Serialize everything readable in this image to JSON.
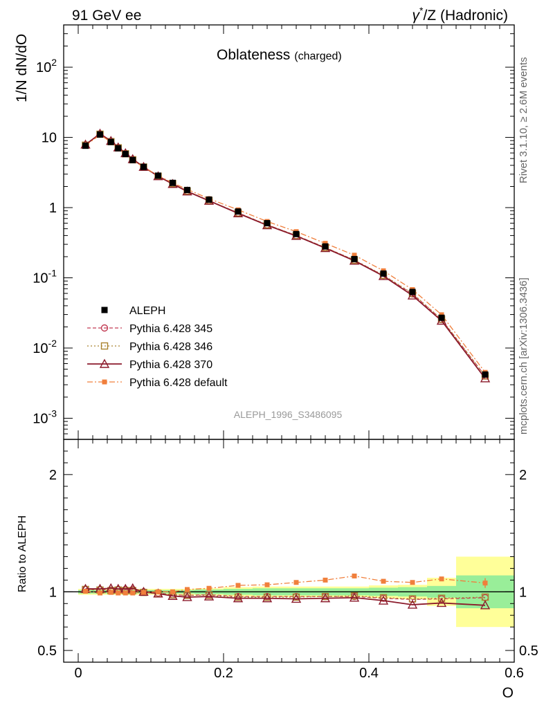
{
  "header": {
    "left_label": "91 GeV ee",
    "right_label_gamma": "γ",
    "right_label_star": "*",
    "right_label_rest": "/Z (Hadronic)"
  },
  "side": {
    "rivet_label": "Rivet 3.1.10, ≥ 2.6M events",
    "mcplots_label": "mcplots.cern.ch [arXiv:1306.3436]"
  },
  "chart_data": [
    {
      "type": "line",
      "scale": "log",
      "title": "Oblateness",
      "title_sub": "(charged)",
      "ylabel": "1/N dN/dO",
      "watermark": "ALEPH_1996_S3486095",
      "xlim": [
        -0.02,
        0.6
      ],
      "ylim": [
        0.0005,
        400
      ],
      "x_ticks": [
        0,
        0.2,
        0.4,
        0.6
      ],
      "y_ticks": [
        {
          "value": 0.001,
          "base": "10",
          "exp": "-3"
        },
        {
          "value": 0.01,
          "base": "10",
          "exp": "-2"
        },
        {
          "value": 0.1,
          "base": "10",
          "exp": "-1"
        },
        {
          "value": 1,
          "base": "1",
          "exp": ""
        },
        {
          "value": 10,
          "base": "10",
          "exp": ""
        },
        {
          "value": 100,
          "base": "10",
          "exp": "2"
        }
      ],
      "x": [
        0.01,
        0.03,
        0.045,
        0.055,
        0.065,
        0.075,
        0.09,
        0.11,
        0.13,
        0.15,
        0.18,
        0.22,
        0.26,
        0.3,
        0.34,
        0.38,
        0.42,
        0.46,
        0.5,
        0.56
      ],
      "series": [
        {
          "name": "ALEPH",
          "style": "data",
          "color": "#000000",
          "values": [
            7.6,
            11.0,
            8.6,
            7.0,
            5.8,
            4.75,
            3.8,
            2.85,
            2.25,
            1.78,
            1.3,
            0.88,
            0.6,
            0.42,
            0.28,
            0.185,
            0.115,
            0.063,
            0.027,
            0.0042
          ]
        },
        {
          "name": "Pythia 6.428 345",
          "style": "circle",
          "color": "#c23b53",
          "values": [
            7.8,
            11.2,
            8.8,
            7.15,
            5.9,
            4.85,
            3.8,
            2.8,
            2.2,
            1.72,
            1.26,
            0.84,
            0.57,
            0.4,
            0.27,
            0.178,
            0.108,
            0.059,
            0.0255,
            0.004
          ]
        },
        {
          "name": "Pythia 6.428 346",
          "style": "square",
          "color": "#a9822e",
          "values": [
            7.75,
            11.1,
            8.7,
            7.1,
            5.85,
            4.8,
            3.78,
            2.8,
            2.2,
            1.72,
            1.26,
            0.84,
            0.57,
            0.4,
            0.27,
            0.179,
            0.109,
            0.06,
            0.0257,
            0.004
          ]
        },
        {
          "name": "Pythia 6.428 370",
          "style": "triangle",
          "color": "#8b1a2b",
          "values": [
            7.9,
            11.3,
            8.9,
            7.2,
            5.95,
            4.9,
            3.8,
            2.8,
            2.17,
            1.7,
            1.25,
            0.83,
            0.56,
            0.395,
            0.265,
            0.175,
            0.106,
            0.056,
            0.0245,
            0.0037
          ]
        },
        {
          "name": "Pythia 6.428 default",
          "style": "filled-square",
          "color": "#f07f3c",
          "values": [
            7.65,
            10.9,
            8.6,
            6.95,
            5.75,
            4.7,
            3.78,
            2.85,
            2.25,
            1.82,
            1.34,
            0.93,
            0.635,
            0.455,
            0.31,
            0.21,
            0.126,
            0.068,
            0.0298,
            0.0045
          ]
        }
      ]
    },
    {
      "type": "line",
      "title": "",
      "ylabel": "Ratio to ALEPH",
      "xlabel": "O",
      "xlim": [
        -0.02,
        0.6
      ],
      "ylim": [
        0.4,
        2.3
      ],
      "x_ticks": [
        0,
        0.2,
        0.4,
        0.6
      ],
      "x_tick_labels": [
        "0",
        "0.2",
        "0.4",
        "0.6"
      ],
      "y_ticks": [
        0.5,
        1,
        2
      ],
      "y_tick_labels": [
        "0.5",
        "1",
        "2"
      ],
      "bands": [
        {
          "x0": 0.0,
          "x1": 0.02,
          "green": [
            0.985,
            1.015
          ],
          "yellow": [
            0.975,
            1.025
          ]
        },
        {
          "x0": 0.02,
          "x1": 0.04,
          "green": [
            0.985,
            1.015
          ],
          "yellow": [
            0.975,
            1.025
          ]
        },
        {
          "x0": 0.04,
          "x1": 0.05,
          "green": [
            0.985,
            1.015
          ],
          "yellow": [
            0.975,
            1.025
          ]
        },
        {
          "x0": 0.05,
          "x1": 0.06,
          "green": [
            0.985,
            1.015
          ],
          "yellow": [
            0.975,
            1.025
          ]
        },
        {
          "x0": 0.06,
          "x1": 0.07,
          "green": [
            0.985,
            1.015
          ],
          "yellow": [
            0.975,
            1.025
          ]
        },
        {
          "x0": 0.07,
          "x1": 0.08,
          "green": [
            0.985,
            1.015
          ],
          "yellow": [
            0.975,
            1.025
          ]
        },
        {
          "x0": 0.08,
          "x1": 0.1,
          "green": [
            0.985,
            1.015
          ],
          "yellow": [
            0.975,
            1.025
          ]
        },
        {
          "x0": 0.1,
          "x1": 0.12,
          "green": [
            0.985,
            1.015
          ],
          "yellow": [
            0.975,
            1.025
          ]
        },
        {
          "x0": 0.12,
          "x1": 0.14,
          "green": [
            0.985,
            1.015
          ],
          "yellow": [
            0.975,
            1.025
          ]
        },
        {
          "x0": 0.14,
          "x1": 0.16,
          "green": [
            0.985,
            1.015
          ],
          "yellow": [
            0.975,
            1.025
          ]
        },
        {
          "x0": 0.16,
          "x1": 0.2,
          "green": [
            0.98,
            1.02
          ],
          "yellow": [
            0.97,
            1.03
          ]
        },
        {
          "x0": 0.2,
          "x1": 0.24,
          "green": [
            0.975,
            1.025
          ],
          "yellow": [
            0.96,
            1.04
          ]
        },
        {
          "x0": 0.24,
          "x1": 0.28,
          "green": [
            0.97,
            1.03
          ],
          "yellow": [
            0.955,
            1.045
          ]
        },
        {
          "x0": 0.28,
          "x1": 0.32,
          "green": [
            0.97,
            1.03
          ],
          "yellow": [
            0.955,
            1.045
          ]
        },
        {
          "x0": 0.32,
          "x1": 0.36,
          "green": [
            0.97,
            1.03
          ],
          "yellow": [
            0.955,
            1.045
          ]
        },
        {
          "x0": 0.36,
          "x1": 0.4,
          "green": [
            0.97,
            1.03
          ],
          "yellow": [
            0.955,
            1.045
          ]
        },
        {
          "x0": 0.4,
          "x1": 0.44,
          "green": [
            0.965,
            1.035
          ],
          "yellow": [
            0.945,
            1.055
          ]
        },
        {
          "x0": 0.44,
          "x1": 0.48,
          "green": [
            0.96,
            1.04
          ],
          "yellow": [
            0.94,
            1.06
          ]
        },
        {
          "x0": 0.48,
          "x1": 0.52,
          "green": [
            0.95,
            1.05
          ],
          "yellow": [
            0.88,
            1.12
          ]
        },
        {
          "x0": 0.52,
          "x1": 0.6,
          "green": [
            0.86,
            1.14
          ],
          "yellow": [
            0.7,
            1.3
          ]
        }
      ],
      "x": [
        0.01,
        0.03,
        0.045,
        0.055,
        0.065,
        0.075,
        0.09,
        0.11,
        0.13,
        0.15,
        0.18,
        0.22,
        0.26,
        0.3,
        0.34,
        0.38,
        0.42,
        0.46,
        0.5,
        0.56
      ],
      "series": [
        {
          "name": "Pythia 6.428 345",
          "style": "circle",
          "color": "#c23b53",
          "values": [
            1.02,
            1.02,
            1.015,
            1.02,
            1.02,
            1.02,
            1.0,
            0.99,
            0.975,
            0.97,
            0.975,
            0.96,
            0.96,
            0.96,
            0.96,
            0.96,
            0.945,
            0.935,
            0.94,
            0.95
          ]
        },
        {
          "name": "Pythia 6.428 346",
          "style": "square",
          "color": "#a9822e",
          "values": [
            1.02,
            1.015,
            1.01,
            1.015,
            1.01,
            1.01,
            0.995,
            0.985,
            0.975,
            0.97,
            0.97,
            0.955,
            0.955,
            0.955,
            0.96,
            0.965,
            0.95,
            0.94,
            0.945,
            0.955
          ]
        },
        {
          "name": "Pythia 6.428 370",
          "style": "triangle",
          "color": "#8b1a2b",
          "values": [
            1.025,
            1.025,
            1.03,
            1.025,
            1.025,
            1.03,
            1.0,
            0.985,
            0.965,
            0.955,
            0.96,
            0.945,
            0.945,
            0.94,
            0.945,
            0.95,
            0.925,
            0.89,
            0.905,
            0.885
          ]
        },
        {
          "name": "Pythia 6.428 default",
          "style": "filled-square",
          "color": "#f07f3c",
          "values": [
            1.005,
            0.99,
            0.995,
            0.99,
            0.99,
            0.99,
            0.995,
            1.0,
            1.0,
            1.02,
            1.03,
            1.055,
            1.06,
            1.08,
            1.1,
            1.135,
            1.09,
            1.08,
            1.11,
            1.075
          ]
        }
      ],
      "reference_line": 1
    }
  ]
}
